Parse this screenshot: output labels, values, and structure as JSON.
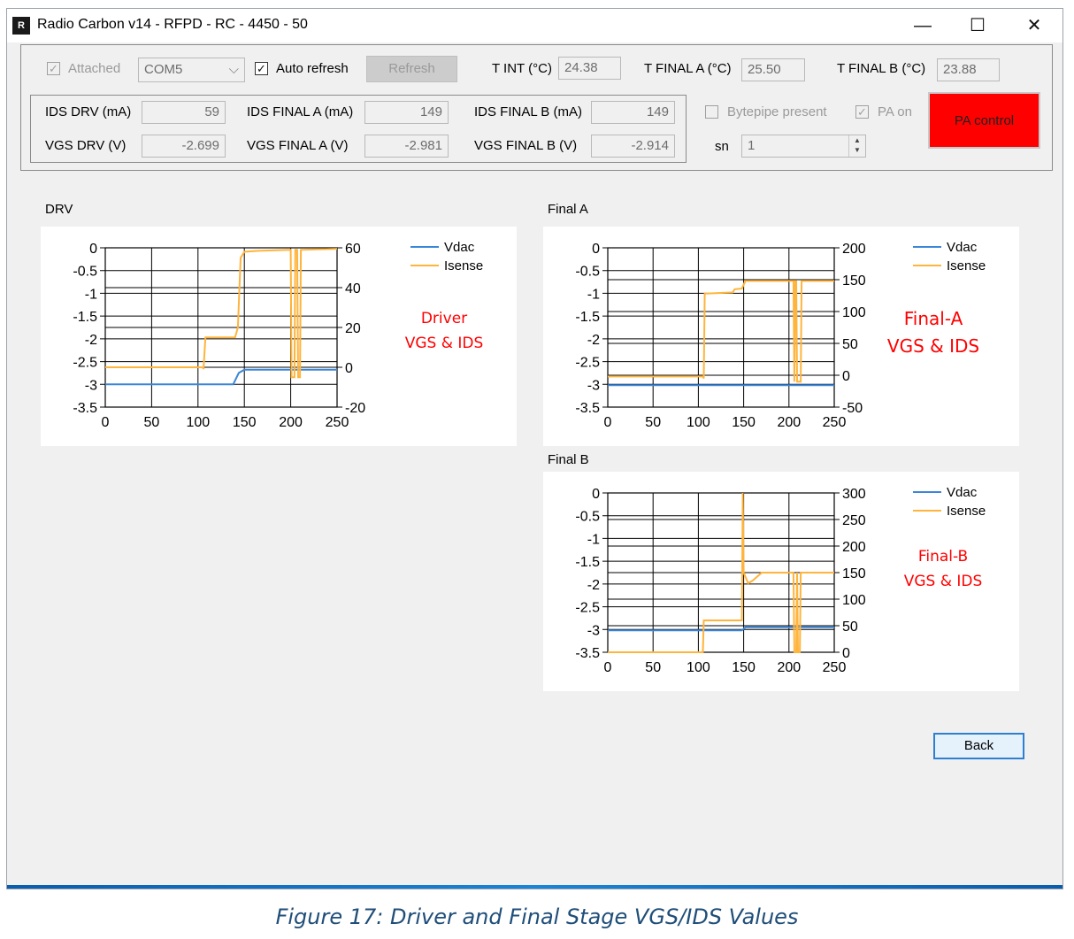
{
  "window": {
    "title": "Radio Carbon v14 - RFPD - RC - 4450 - 50",
    "icon": "app-logo-icon",
    "controls": {
      "minimize": "—",
      "maximize": "☐",
      "close": "✕"
    }
  },
  "top": {
    "attached_label": "Attached",
    "attached_checked": true,
    "port_value": "COM5",
    "auto_refresh_label": "Auto refresh",
    "auto_refresh_checked": true,
    "refresh_button": "Refresh",
    "t_int_label": "T INT (°C)",
    "t_int_value": "24.38",
    "t_final_a_label": "T FINAL A (°C)",
    "t_final_a_value": "25.50",
    "t_final_b_label": "T FINAL B (°C)",
    "t_final_b_value": "23.88"
  },
  "readings": {
    "ids_drv_label": "IDS DRV (mA)",
    "ids_drv_value": "59",
    "ids_final_a_label": "IDS FINAL A (mA)",
    "ids_final_a_value": "149",
    "ids_final_b_label": "IDS FINAL B (mA)",
    "ids_final_b_value": "149",
    "vgs_drv_label": "VGS DRV (V)",
    "vgs_drv_value": "-2.699",
    "vgs_final_a_label": "VGS FINAL A (V)",
    "vgs_final_a_value": "-2.981",
    "vgs_final_b_label": "VGS FINAL B (V)",
    "vgs_final_b_value": "-2.914"
  },
  "status": {
    "bytepipe_label": "Bytepipe present",
    "bytepipe_checked": false,
    "pa_on_label": "PA on",
    "pa_on_checked": true,
    "sn_label": "sn",
    "sn_value": "1",
    "pa_control_button": "PA control",
    "pa_control_color": "#ff0000"
  },
  "colors": {
    "vdac": "#3a86d8",
    "isense": "#ffb43c",
    "annotation": "#ff0000",
    "caption": "#1f4e79"
  },
  "back_button": "Back",
  "caption": "Figure 17: Driver and Final Stage VGS/IDS Values",
  "chart_data": [
    {
      "type": "line",
      "title": "DRV",
      "annotation": [
        "Driver",
        "VGS & IDS"
      ],
      "xlim": [
        0,
        250
      ],
      "xticks": [
        0,
        50,
        100,
        150,
        200,
        250
      ],
      "ylim_left": [
        -3.5,
        0
      ],
      "yticks_left": [
        "0",
        "-0.5",
        "-1",
        "-1.5",
        "-2",
        "-2.5",
        "-3",
        "-3.5"
      ],
      "ylim_right": [
        -20,
        60
      ],
      "yticks_right": [
        "60",
        "40",
        "20",
        "0",
        "-20"
      ],
      "legend": [
        "Vdac",
        "Isense"
      ],
      "legend_position": "top-right",
      "grid": true,
      "series": [
        {
          "name": "Vdac",
          "axis": "left",
          "points": [
            [
              0,
              -3.0
            ],
            [
              138,
              -3.0
            ],
            [
              144,
              -2.75
            ],
            [
              150,
              -2.68
            ],
            [
              250,
              -2.68
            ]
          ]
        },
        {
          "name": "Isense",
          "axis": "right",
          "points": [
            [
              0,
              0
            ],
            [
              104,
              0
            ],
            [
              106,
              -0.5
            ],
            [
              108,
              15
            ],
            [
              140,
              15
            ],
            [
              143,
              20
            ],
            [
              146,
              55
            ],
            [
              150,
              58
            ],
            [
              165,
              58.5
            ],
            [
              200,
              59
            ],
            [
              201,
              -5
            ],
            [
              204,
              -5
            ],
            [
              205,
              59
            ],
            [
              207,
              59
            ],
            [
              208,
              -5
            ],
            [
              210,
              -5
            ],
            [
              211,
              59
            ],
            [
              250,
              59.5
            ]
          ]
        }
      ]
    },
    {
      "type": "line",
      "title": "Final A",
      "annotation": [
        "Final-A",
        "VGS & IDS"
      ],
      "xlim": [
        0,
        250
      ],
      "xticks": [
        0,
        50,
        100,
        150,
        200,
        250
      ],
      "ylim_left": [
        -3.5,
        0
      ],
      "yticks_left": [
        "0",
        "-0.5",
        "-1",
        "-1.5",
        "-2",
        "-2.5",
        "-3",
        "-3.5"
      ],
      "ylim_right": [
        -50,
        200
      ],
      "yticks_right": [
        "200",
        "150",
        "100",
        "50",
        "0",
        "-50"
      ],
      "legend": [
        "Vdac",
        "Isense"
      ],
      "legend_position": "top-right",
      "grid": true,
      "series": [
        {
          "name": "Vdac",
          "axis": "left",
          "points": [
            [
              0,
              -3.02
            ],
            [
              250,
              -3.02
            ]
          ]
        },
        {
          "name": "Isense",
          "axis": "right",
          "points": [
            [
              0,
              -2
            ],
            [
              105,
              -2
            ],
            [
              106,
              -5
            ],
            [
              107,
              128
            ],
            [
              138,
              130
            ],
            [
              140,
              135
            ],
            [
              148,
              136
            ],
            [
              152,
              148
            ],
            [
              160,
              148
            ],
            [
              205,
              148
            ],
            [
              206,
              -10
            ],
            [
              207,
              148
            ],
            [
              208,
              148
            ],
            [
              209,
              -10
            ],
            [
              213,
              -10
            ],
            [
              214,
              148
            ],
            [
              250,
              148
            ]
          ]
        }
      ]
    },
    {
      "type": "line",
      "title": "Final B",
      "annotation": [
        "Final-B",
        "VGS & IDS"
      ],
      "xlim": [
        0,
        250
      ],
      "xticks": [
        0,
        50,
        100,
        150,
        200,
        250
      ],
      "ylim_left": [
        -3.5,
        0
      ],
      "yticks_left": [
        "0",
        "-0.5",
        "-1",
        "-1.5",
        "-2",
        "-2.5",
        "-3",
        "-3.5"
      ],
      "ylim_right": [
        0,
        300
      ],
      "yticks_right": [
        "300",
        "250",
        "200",
        "150",
        "100",
        "50",
        "0"
      ],
      "legend": [
        "Vdac",
        "Isense"
      ],
      "legend_position": "top-right",
      "grid": true,
      "series": [
        {
          "name": "Vdac",
          "axis": "left",
          "points": [
            [
              0,
              -3.02
            ],
            [
              148,
              -3.02
            ],
            [
              152,
              -2.95
            ],
            [
              250,
              -2.95
            ]
          ]
        },
        {
          "name": "Isense",
          "axis": "right",
          "points": [
            [
              0,
              0
            ],
            [
              105,
              0
            ],
            [
              106,
              60
            ],
            [
              148,
              60
            ],
            [
              149,
              300
            ],
            [
              150,
              150
            ],
            [
              155,
              130
            ],
            [
              160,
              135
            ],
            [
              170,
              150
            ],
            [
              205,
              150
            ],
            [
              206,
              0
            ],
            [
              208,
              0
            ],
            [
              209,
              150
            ],
            [
              210,
              0
            ],
            [
              212,
              0
            ],
            [
              213,
              150
            ],
            [
              250,
              150
            ]
          ]
        }
      ]
    }
  ]
}
